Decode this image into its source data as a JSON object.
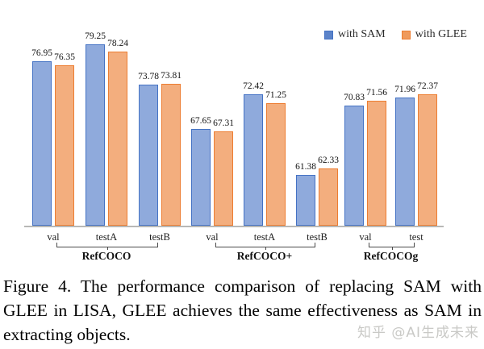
{
  "legend": {
    "items": [
      {
        "label": "with SAM",
        "color": "#4472C4"
      },
      {
        "label": "with GLEE",
        "color": "#ED7D31"
      }
    ]
  },
  "chart_data": {
    "type": "bar",
    "title": "",
    "xlabel": "",
    "ylabel": "",
    "grid": false,
    "value_labels": true,
    "legend_position": "top-right",
    "ylim_implied": [
      54.5,
      80
    ],
    "series_names": [
      "with SAM",
      "with GLEE"
    ],
    "series_colors": {
      "fill": [
        "#8FAADC",
        "#F3AE7E"
      ],
      "border": [
        "#4472C4",
        "#ED7D31"
      ]
    },
    "groups": [
      {
        "name": "RefCOCO",
        "categories": [
          "val",
          "testA",
          "testB"
        ],
        "series": [
          {
            "name": "with SAM",
            "values": [
              76.95,
              79.25,
              73.78
            ]
          },
          {
            "name": "with GLEE",
            "values": [
              76.35,
              78.24,
              73.81
            ]
          }
        ]
      },
      {
        "name": "RefCOCO+",
        "categories": [
          "val",
          "testA",
          "testB"
        ],
        "series": [
          {
            "name": "with SAM",
            "values": [
              67.65,
              72.42,
              61.38
            ]
          },
          {
            "name": "with GLEE",
            "values": [
              67.31,
              71.25,
              62.33
            ]
          }
        ]
      },
      {
        "name": "RefCOCOg",
        "categories": [
          "val",
          "test"
        ],
        "series": [
          {
            "name": "with SAM",
            "values": [
              70.83,
              71.96
            ]
          },
          {
            "name": "with GLEE",
            "values": [
              71.56,
              72.37
            ]
          }
        ]
      }
    ]
  },
  "caption": {
    "lines": [
      "Figure 4.  The performance comparison of replacing SAM with",
      "GLEE in LISA, GLEE achieves the same effectiveness as SAM in",
      "extracting objects."
    ]
  },
  "watermark": {
    "text": "知乎 @AI生成未来",
    "color": "#c9c9c6"
  }
}
